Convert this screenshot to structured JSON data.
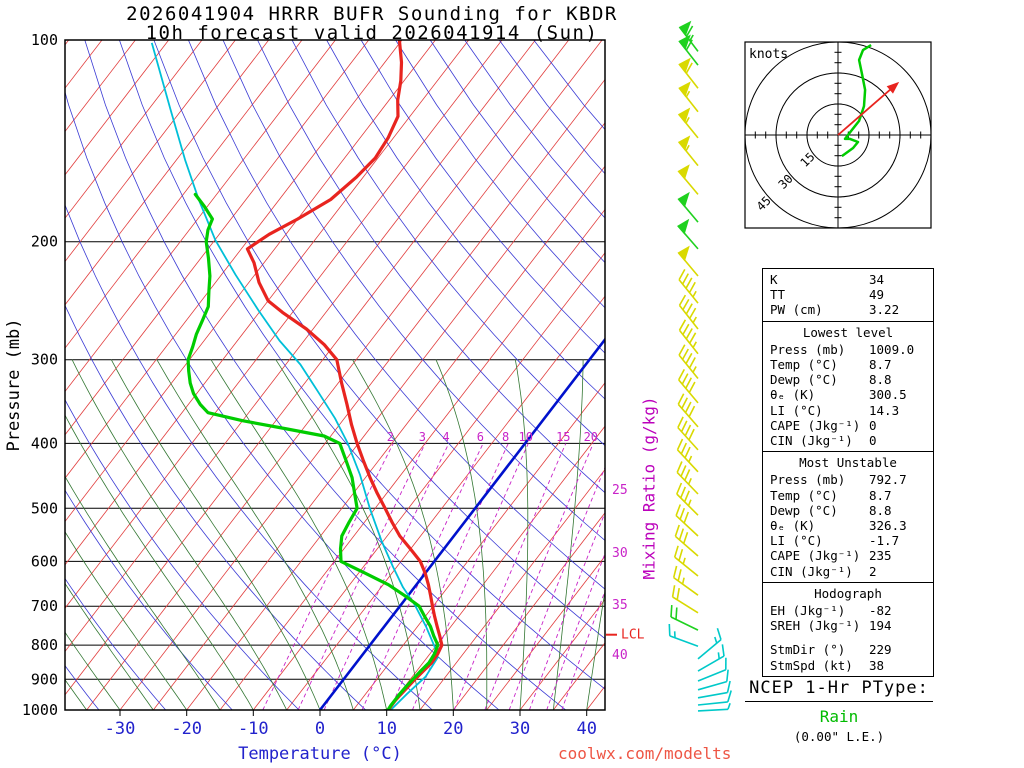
{
  "title": {
    "line1": "2026041904 HRRR BUFR Sounding for KBDR",
    "line2": "10h forecast valid 2026041914 (Sun)"
  },
  "watermark": "coolwx.com/modelts",
  "axes": {
    "pressure_label": "Pressure (mb)",
    "pressure_ticks": [
      100,
      200,
      300,
      400,
      500,
      600,
      700,
      800,
      900,
      1000
    ],
    "temp_label": "Temperature (°C)",
    "temp_ticks": [
      -30,
      -20,
      -10,
      0,
      10,
      20,
      30,
      40
    ],
    "mixing_ratio_label": "Mixing Ratio (g/kg)",
    "mixing_ratio_values": [
      2,
      3,
      4,
      6,
      8,
      10,
      15,
      20,
      25,
      30,
      35,
      40
    ],
    "lcl_label": "LCL",
    "lcl_pressure_mb": 772
  },
  "chart_data": {
    "type": "line",
    "title": "2026041904 HRRR BUFR Sounding for KBDR",
    "subtitle": "10h forecast valid 2026041914 (Sun)",
    "x_axis": {
      "label": "Temperature (°C)",
      "ticks": [
        -30,
        -20,
        -10,
        0,
        10,
        20,
        30,
        40
      ],
      "skew": true
    },
    "y_axis": {
      "label": "Pressure (mb)",
      "scale": "log",
      "ticks": [
        100,
        200,
        300,
        400,
        500,
        600,
        700,
        800,
        900,
        1000
      ],
      "range": [
        100,
        1000
      ]
    },
    "series": [
      {
        "name": "temperature",
        "color": "#e8241f",
        "points": [
          [
            1009,
            8.7
          ],
          [
            1000,
            10.3
          ],
          [
            985,
            10.2
          ],
          [
            970,
            10.2
          ],
          [
            950,
            10.3
          ],
          [
            925,
            10.5
          ],
          [
            900,
            10.7
          ],
          [
            875,
            11.0
          ],
          [
            850,
            11.3
          ],
          [
            825,
            11.2
          ],
          [
            800,
            10.8
          ],
          [
            775,
            9.4
          ],
          [
            750,
            7.9
          ],
          [
            725,
            6.4
          ],
          [
            700,
            4.9
          ],
          [
            675,
            3.4
          ],
          [
            650,
            1.8
          ],
          [
            625,
            0.0
          ],
          [
            600,
            -2.1
          ],
          [
            575,
            -5.0
          ],
          [
            550,
            -8.1
          ],
          [
            525,
            -10.8
          ],
          [
            500,
            -13.5
          ],
          [
            475,
            -16.4
          ],
          [
            450,
            -19.3
          ],
          [
            425,
            -22.2
          ],
          [
            400,
            -25.2
          ],
          [
            375,
            -28.2
          ],
          [
            350,
            -31.2
          ],
          [
            325,
            -34.5
          ],
          [
            300,
            -37.9
          ],
          [
            285,
            -41.5
          ],
          [
            270,
            -46.0
          ],
          [
            255,
            -51.5
          ],
          [
            245,
            -55.0
          ],
          [
            230,
            -58.5
          ],
          [
            215,
            -61.5
          ],
          [
            205,
            -64.1
          ],
          [
            195,
            -62.5
          ],
          [
            185,
            -60.0
          ],
          [
            173,
            -57.3
          ],
          [
            160,
            -56.0
          ],
          [
            150,
            -55.4
          ],
          [
            140,
            -55.8
          ],
          [
            130,
            -56.8
          ],
          [
            123,
            -58.7
          ],
          [
            115,
            -60.5
          ],
          [
            108,
            -62.5
          ],
          [
            100,
            -65.4
          ]
        ]
      },
      {
        "name": "dewpoint",
        "color": "#00cc00",
        "points": [
          [
            1009,
            8.8
          ],
          [
            1000,
            10.2
          ],
          [
            985,
            10.1
          ],
          [
            970,
            10.1
          ],
          [
            950,
            10.1
          ],
          [
            925,
            10.2
          ],
          [
            900,
            10.4
          ],
          [
            875,
            10.6
          ],
          [
            850,
            10.9
          ],
          [
            825,
            10.7
          ],
          [
            800,
            10.2
          ],
          [
            775,
            8.5
          ],
          [
            750,
            6.9
          ],
          [
            725,
            4.9
          ],
          [
            700,
            2.9
          ],
          [
            675,
            -0.5
          ],
          [
            650,
            -4.2
          ],
          [
            625,
            -9.0
          ],
          [
            600,
            -14.0
          ],
          [
            575,
            -15.5
          ],
          [
            550,
            -16.8
          ],
          [
            525,
            -17.3
          ],
          [
            500,
            -17.7
          ],
          [
            475,
            -19.8
          ],
          [
            450,
            -22.0
          ],
          [
            425,
            -24.8
          ],
          [
            400,
            -27.8
          ],
          [
            390,
            -31.0
          ],
          [
            380,
            -37.8
          ],
          [
            370,
            -45.0
          ],
          [
            360,
            -51.1
          ],
          [
            350,
            -53.2
          ],
          [
            337,
            -55.5
          ],
          [
            325,
            -57.2
          ],
          [
            312,
            -58.8
          ],
          [
            300,
            -60.2
          ],
          [
            287,
            -61.0
          ],
          [
            275,
            -61.9
          ],
          [
            262,
            -62.6
          ],
          [
            250,
            -63.3
          ],
          [
            237,
            -65.0
          ],
          [
            225,
            -66.6
          ],
          [
            212,
            -68.8
          ],
          [
            200,
            -71.1
          ],
          [
            192,
            -72.2
          ],
          [
            185,
            -72.8
          ],
          [
            177,
            -75.5
          ],
          [
            170,
            -78.2
          ]
        ]
      },
      {
        "name": "wet_bulb",
        "color": "#00bfd8",
        "points": [
          [
            1009,
            9.0
          ],
          [
            1000,
            10.6
          ],
          [
            946,
            11.2
          ],
          [
            892,
            12.0
          ],
          [
            835,
            11.6
          ],
          [
            803,
            9.8
          ],
          [
            751,
            6.3
          ],
          [
            698,
            2.2
          ],
          [
            656,
            -1.7
          ],
          [
            611,
            -5.6
          ],
          [
            559,
            -10.3
          ],
          [
            500,
            -15.8
          ],
          [
            446,
            -21.1
          ],
          [
            400,
            -26.6
          ],
          [
            367,
            -31.4
          ],
          [
            335,
            -37.0
          ],
          [
            305,
            -42.8
          ],
          [
            281,
            -48.7
          ],
          [
            253,
            -55.4
          ],
          [
            224,
            -62.9
          ],
          [
            199,
            -69.9
          ],
          [
            173,
            -77.1
          ],
          [
            151,
            -83.7
          ],
          [
            127,
            -91.7
          ],
          [
            101,
            -102.2
          ]
        ]
      }
    ],
    "mixing_ratio_lines_g_per_kg": [
      2,
      3,
      4,
      6,
      8,
      10,
      15,
      20,
      25,
      30,
      35,
      40
    ],
    "lcl_pressure_mb": 772,
    "wind_barbs": [
      {
        "p_mb": 104,
        "color": "green",
        "angle_deg": 127,
        "speed_kt": 65
      },
      {
        "p_mb": 109,
        "color": "green",
        "angle_deg": 128,
        "speed_kt": 60
      },
      {
        "p_mb": 118,
        "color": "yellow",
        "angle_deg": 128,
        "speed_kt": 60
      },
      {
        "p_mb": 128,
        "color": "yellow",
        "angle_deg": 128,
        "speed_kt": 55
      },
      {
        "p_mb": 140,
        "color": "yellow",
        "angle_deg": 129,
        "speed_kt": 55
      },
      {
        "p_mb": 154,
        "color": "yellow",
        "angle_deg": 129,
        "speed_kt": 55
      },
      {
        "p_mb": 170,
        "color": "yellow",
        "angle_deg": 130,
        "speed_kt": 50
      },
      {
        "p_mb": 187,
        "color": "green",
        "angle_deg": 130,
        "speed_kt": 50
      },
      {
        "p_mb": 205,
        "color": "green",
        "angle_deg": 131,
        "speed_kt": 50
      },
      {
        "p_mb": 225,
        "color": "yellow",
        "angle_deg": 130,
        "speed_kt": 50
      },
      {
        "p_mb": 247,
        "color": "yellow",
        "angle_deg": 129,
        "speed_kt": 45
      },
      {
        "p_mb": 270,
        "color": "yellow",
        "angle_deg": 128,
        "speed_kt": 45
      },
      {
        "p_mb": 294,
        "color": "yellow",
        "angle_deg": 128,
        "speed_kt": 45
      },
      {
        "p_mb": 320,
        "color": "yellow",
        "angle_deg": 129,
        "speed_kt": 45
      },
      {
        "p_mb": 348,
        "color": "yellow",
        "angle_deg": 130,
        "speed_kt": 40
      },
      {
        "p_mb": 378,
        "color": "yellow",
        "angle_deg": 131,
        "speed_kt": 40
      },
      {
        "p_mb": 409,
        "color": "yellow",
        "angle_deg": 132,
        "speed_kt": 40
      },
      {
        "p_mb": 441,
        "color": "yellow",
        "angle_deg": 133,
        "speed_kt": 35
      },
      {
        "p_mb": 476,
        "color": "yellow",
        "angle_deg": 134,
        "speed_kt": 35
      },
      {
        "p_mb": 512,
        "color": "yellow",
        "angle_deg": 135,
        "speed_kt": 35
      },
      {
        "p_mb": 550,
        "color": "yellow",
        "angle_deg": 137,
        "speed_kt": 30
      },
      {
        "p_mb": 589,
        "color": "yellow",
        "angle_deg": 139,
        "speed_kt": 30
      },
      {
        "p_mb": 631,
        "color": "yellow",
        "angle_deg": 141,
        "speed_kt": 25
      },
      {
        "p_mb": 674,
        "color": "yellow",
        "angle_deg": 144,
        "speed_kt": 25
      },
      {
        "p_mb": 716,
        "color": "yellow",
        "angle_deg": 148,
        "speed_kt": 20
      },
      {
        "p_mb": 760,
        "color": "green",
        "angle_deg": 154,
        "speed_kt": 20
      },
      {
        "p_mb": 803,
        "color": "cyan",
        "angle_deg": 160,
        "speed_kt": 15
      },
      {
        "p_mb": 839,
        "color": "cyan",
        "angle_deg": 40,
        "speed_kt": 15
      },
      {
        "p_mb": 875,
        "color": "cyan",
        "angle_deg": 30,
        "speed_kt": 15
      },
      {
        "p_mb": 905,
        "color": "cyan",
        "angle_deg": 22,
        "speed_kt": 10
      },
      {
        "p_mb": 933,
        "color": "cyan",
        "angle_deg": 16,
        "speed_kt": 10
      },
      {
        "p_mb": 959,
        "color": "cyan",
        "angle_deg": 10,
        "speed_kt": 10
      },
      {
        "p_mb": 983,
        "color": "cyan",
        "angle_deg": 6,
        "speed_kt": 10
      },
      {
        "p_mb": 1003,
        "color": "cyan",
        "angle_deg": 3,
        "speed_kt": 5
      }
    ]
  },
  "hodograph": {
    "label": "knots",
    "rings_kt": [
      15,
      30,
      45
    ],
    "trace_kt": [
      [
        1.9,
        -10.2
      ],
      [
        7.3,
        -6.3
      ],
      [
        9.7,
        -3.4
      ],
      [
        5.8,
        -1.9
      ],
      [
        3.4,
        -1.9
      ],
      [
        6.3,
        1.9
      ],
      [
        10.2,
        6.8
      ],
      [
        12.6,
        14.0
      ],
      [
        13.1,
        21.8
      ],
      [
        11.6,
        29.5
      ],
      [
        10.2,
        36.3
      ],
      [
        12.1,
        41.1
      ],
      [
        16.0,
        43.5
      ]
    ],
    "storm_dir_deg": 229,
    "storm_spd_kt": 38
  },
  "stats": {
    "sections": [
      {
        "rows": [
          [
            "K",
            "34"
          ],
          [
            "TT",
            "49"
          ],
          [
            "PW (cm)",
            "3.22"
          ]
        ]
      },
      {
        "title": "Lowest level",
        "rows": [
          [
            "Press (mb)",
            "1009.0"
          ],
          [
            "Temp (°C)",
            "8.7"
          ],
          [
            "Dewp (°C)",
            "8.8"
          ],
          [
            "θₑ (K)",
            "300.5"
          ],
          [
            "LI (°C)",
            "14.3"
          ],
          [
            "CAPE (Jkg⁻¹)",
            "0"
          ],
          [
            "CIN (Jkg⁻¹)",
            "0"
          ]
        ]
      },
      {
        "title": "Most Unstable",
        "rows": [
          [
            "Press (mb)",
            "792.7"
          ],
          [
            "Temp (°C)",
            "8.7"
          ],
          [
            "Dewp (°C)",
            "8.8"
          ],
          [
            "θₑ (K)",
            "326.3"
          ],
          [
            "LI (°C)",
            "-1.7"
          ],
          [
            "CAPE (Jkg⁻¹)",
            "235"
          ],
          [
            "CIN (Jkg⁻¹)",
            "2"
          ]
        ]
      },
      {
        "title": "Hodograph",
        "rows": [
          [
            "EH (Jkg⁻¹)",
            "-82"
          ],
          [
            "SREH (Jkg⁻¹)",
            "194"
          ],
          [
            "StmDir (°)",
            "229"
          ],
          [
            "StmSpd (kt)",
            "38"
          ]
        ]
      }
    ]
  },
  "ptype": {
    "heading": "NCEP 1-Hr PType:",
    "value": "Rain",
    "extra": "(0.00\" L.E.)"
  }
}
